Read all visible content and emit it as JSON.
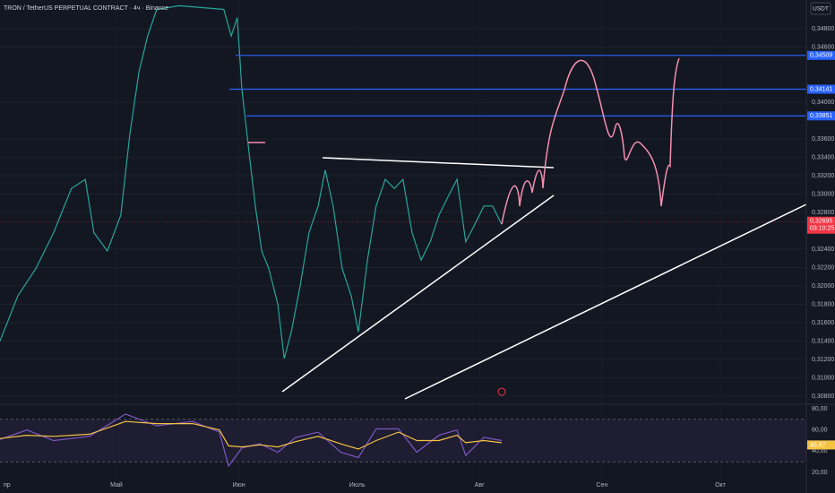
{
  "header": {
    "symbol": "TRON / TetherUS PERPETUAL CONTRACT · 4ч · Binance",
    "currency": "USDT"
  },
  "chart_data": [
    {
      "type": "line",
      "x": [
        0.5,
        5.0,
        9.6,
        14.1,
        18.6,
        22.1,
        24.3,
        27.7,
        31.1,
        33.4,
        35.7,
        37.9,
        40.2,
        45.9,
        57.2,
        59.1,
        60.6,
        61.8,
        63.6,
        65.2,
        66.8,
        68.6,
        70.9,
        72.5,
        74.3,
        76.5,
        78.8,
        81.1,
        82.9,
        84.9,
        87.2,
        89.5,
        91.3,
        93.6,
        95.8,
        98.1,
        100.4,
        102.6,
        104.9,
        107.2,
        109.5,
        111.7,
        114.0,
        116.3,
        118.5,
        120.8,
        123.1,
        125.3,
        127.6
      ],
      "series": [
        {
          "color": "#26a69a",
          "values": [
            0.314,
            0.3189,
            0.3219,
            0.3258,
            0.3306,
            0.3316,
            0.3258,
            0.3238,
            0.3277,
            0.3365,
            0.3433,
            0.3472,
            0.3501,
            0.3505,
            0.3501,
            0.3472,
            0.3492,
            0.3414,
            0.3345,
            0.3287,
            0.3238,
            0.3219,
            0.318,
            0.3121,
            0.315,
            0.3199,
            0.3258,
            0.3287,
            0.3326,
            0.3287,
            0.3219,
            0.3189,
            0.315,
            0.3228,
            0.3287,
            0.3316,
            0.3306,
            0.3316,
            0.3258,
            0.3228,
            0.3248,
            0.3277,
            0.3297,
            0.3316,
            0.3248,
            0.3267,
            0.3287,
            0.3287,
            0.3267
          ]
        }
      ],
      "xlim": [
        0.5,
        204.8
      ],
      "xticks": [
        {
          "value": 0,
          "label": "пр"
        },
        {
          "value": 30,
          "label": "Май"
        },
        {
          "value": 61,
          "label": "Июн"
        },
        {
          "value": 91,
          "label": "Июль"
        },
        {
          "value": 122,
          "label": "Авг"
        },
        {
          "value": 153,
          "label": "Сен"
        },
        {
          "value": 183,
          "label": "Окт"
        }
      ],
      "ylim": [
        0.30722,
        0.35112
      ],
      "yticks": [
        {
          "value": 0.348,
          "label": "0,34800"
        },
        {
          "value": 0.346,
          "label": "0,34600"
        },
        {
          "value": 0.34,
          "label": "0,34000"
        },
        {
          "value": 0.336,
          "label": "0,33600"
        },
        {
          "value": 0.334,
          "label": "0,33400"
        },
        {
          "value": 0.332,
          "label": "0,33200"
        },
        {
          "value": 0.33,
          "label": "0,33000"
        },
        {
          "value": 0.328,
          "label": "0,32800"
        },
        {
          "value": 0.324,
          "label": "0,32400"
        },
        {
          "value": 0.322,
          "label": "0,32200"
        },
        {
          "value": 0.32,
          "label": "0,32000"
        },
        {
          "value": 0.318,
          "label": "0,31800"
        },
        {
          "value": 0.316,
          "label": "0,31600"
        },
        {
          "value": 0.314,
          "label": "0,31400"
        },
        {
          "value": 0.312,
          "label": "0,31200"
        },
        {
          "value": 0.31,
          "label": "0,31000"
        },
        {
          "value": 0.308,
          "label": "0,30800"
        }
      ],
      "levels": [
        {
          "value": 0.34509,
          "label": "0,34509",
          "color": "#2962ff"
        },
        {
          "value": 0.34141,
          "label": "0,34141",
          "color": "#2962ff"
        },
        {
          "value": 0.33851,
          "label": "0,33851",
          "color": "#2962ff"
        }
      ],
      "last_price": {
        "value": 0.32695,
        "label": "0,32695",
        "countdown": "03:10:25",
        "color": "#f23645"
      },
      "grid": true
    },
    {
      "type": "line",
      "x": [
        0.5,
        7.3,
        14.1,
        23.2,
        32.3,
        40.2,
        49.3,
        56.1,
        58.4,
        61.8,
        66.3,
        70.9,
        75.4,
        81.1,
        86.8,
        91.3,
        95.8,
        101.5,
        106.1,
        111.7,
        116.3,
        118.5,
        123.1,
        127.6
      ],
      "series": [
        {
          "color": "#7e57c2",
          "values": [
            51,
            60,
            50,
            54,
            75,
            64,
            68,
            58,
            26,
            43,
            47,
            39,
            53,
            58,
            39,
            34,
            61,
            61,
            39,
            55,
            60,
            36,
            53,
            50
          ],
          "last": {
            "value": 45.89,
            "label": "45,89"
          }
        },
        {
          "color": "#f5c242",
          "values": [
            52,
            55,
            54,
            56,
            68,
            66,
            66,
            60,
            45,
            44,
            46,
            44,
            49,
            54,
            47,
            42,
            50,
            58,
            50,
            50,
            55,
            48,
            50,
            48
          ],
          "last": {
            "value": 45.87,
            "label": "45,87"
          }
        }
      ],
      "ylim": [
        14.1,
        83.4
      ],
      "yticks": [
        {
          "value": 80,
          "label": "80,00"
        },
        {
          "value": 60,
          "label": "60,00"
        },
        {
          "value": 40,
          "label": "40,00"
        },
        {
          "value": 20,
          "label": "20,00"
        }
      ],
      "bands": [
        30,
        70
      ]
    }
  ]
}
